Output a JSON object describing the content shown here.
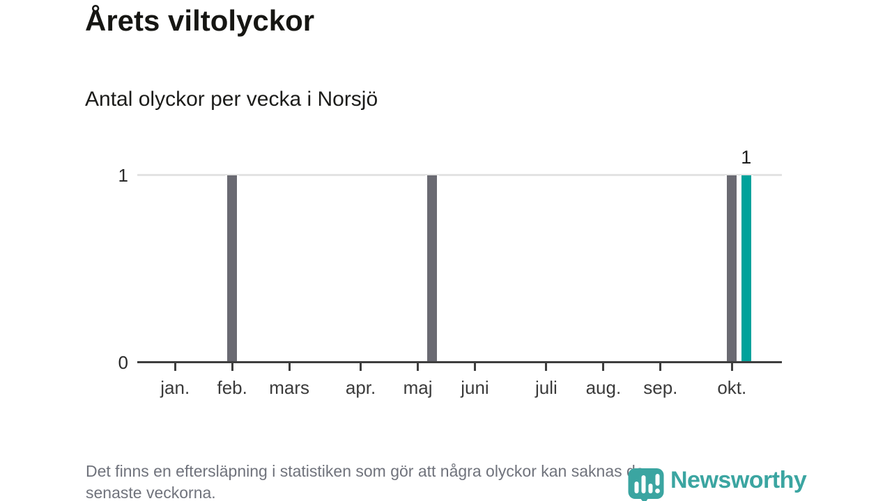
{
  "header": {
    "title": "Årets viltolyckor",
    "subtitle": "Antal olyckor per vecka i Norsjö"
  },
  "chart_data": {
    "type": "bar",
    "title": "Årets viltolyckor",
    "subtitle": "Antal olyckor per vecka i Norsjö",
    "xlabel": "",
    "ylabel": "",
    "ylim": [
      0,
      1
    ],
    "yticks": [
      0,
      1
    ],
    "grid": "single horizontal gridline at y=1",
    "legend": "none",
    "total_weeks": 45,
    "months": [
      {
        "label": "jan.",
        "center_week": 2.5
      },
      {
        "label": "feb.",
        "center_week": 6.5
      },
      {
        "label": "mars",
        "center_week": 10.5
      },
      {
        "label": "apr.",
        "center_week": 15.5
      },
      {
        "label": "maj",
        "center_week": 19.5
      },
      {
        "label": "juni",
        "center_week": 23.5
      },
      {
        "label": "juli",
        "center_week": 28.5
      },
      {
        "label": "aug.",
        "center_week": 32.5
      },
      {
        "label": "sep.",
        "center_week": 36.5
      },
      {
        "label": "okt.",
        "center_week": 41.5
      }
    ],
    "bars": [
      {
        "week": 6,
        "value": 1,
        "color": "#6a6a72"
      },
      {
        "week": 20,
        "value": 1,
        "color": "#6a6a72"
      },
      {
        "week": 41,
        "value": 1,
        "color": "#6a6a72"
      },
      {
        "week": 42,
        "value": 1,
        "color": "#00a29b",
        "data_label": "1"
      }
    ],
    "colors": {
      "bar_default": "#6a6a72",
      "bar_highlight": "#00a29b",
      "gridline": "#e3e3e3",
      "axis": "#3e3e3e"
    }
  },
  "footer": {
    "note_lines": [
      "Det finns en eftersläpning i statistiken som gör att några olyckor kan saknas de",
      "senaste veckorna."
    ],
    "logo": {
      "text": "Newsworthy",
      "color": "#3ba5a1",
      "icon": "newsworthy-speech-bubble-bar-chart-icon"
    }
  }
}
